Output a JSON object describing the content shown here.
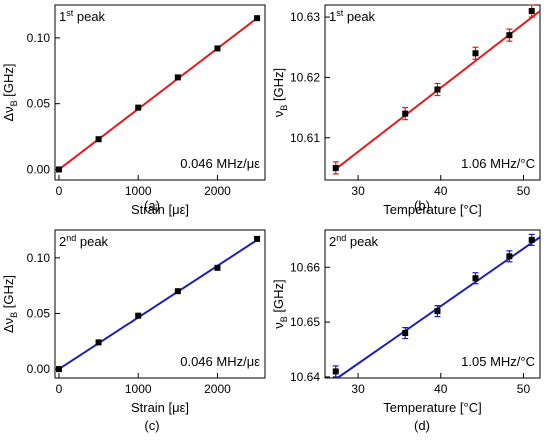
{
  "chart_data": [
    {
      "type": "scatter",
      "panel_label": "(a)",
      "peak_label": {
        "base": "1",
        "sup": "st",
        "rest": " peak"
      },
      "slope_label": "0.046 MHz/με",
      "ylabel": {
        "prefix": "Δν",
        "sub": "B",
        "suffix": " [GHz]"
      },
      "xlabel": {
        "text": "Strain [με]"
      },
      "xlim": [
        -50,
        2600
      ],
      "ylim": [
        -0.008,
        0.125
      ],
      "xticks": [
        0,
        1000,
        2000
      ],
      "xtick_labels": [
        "0",
        "1000",
        "2000"
      ],
      "yticks": [
        0.0,
        0.05,
        0.1
      ],
      "ytick_labels": [
        "0.00",
        "0.05",
        "0.10"
      ],
      "points": {
        "x": [
          0,
          500,
          1000,
          1500,
          2000,
          2500
        ],
        "y": [
          0.0,
          0.023,
          0.047,
          0.07,
          0.092,
          0.115
        ]
      },
      "fit": {
        "x": [
          0,
          2500
        ],
        "y": [
          0.0,
          0.115
        ]
      },
      "grid": false,
      "fit_color": "#e41a1c",
      "errorbar_color": "#e41a1c"
    },
    {
      "type": "scatter",
      "panel_label": "(b)",
      "peak_label": {
        "base": "1",
        "sup": "st",
        "rest": " peak"
      },
      "slope_label": "1.06 MHz/°C",
      "ylabel": {
        "prefix": "ν",
        "sub": "B",
        "suffix": " [GHz]"
      },
      "xlabel": {
        "text": "Temperature [°C]"
      },
      "xlim": [
        26,
        52
      ],
      "ylim": [
        10.603,
        10.632
      ],
      "xticks": [
        30,
        40,
        50
      ],
      "xtick_labels": [
        "30",
        "40",
        "50"
      ],
      "yticks": [
        10.61,
        10.62,
        10.63
      ],
      "ytick_labels": [
        "10.61",
        "10.62",
        "10.63"
      ],
      "points": {
        "x": [
          27.3,
          35.7,
          39.6,
          44.2,
          48.3,
          51.0
        ],
        "y": [
          10.605,
          10.614,
          10.618,
          10.624,
          10.627,
          10.631
        ]
      },
      "errors": [
        0.001,
        0.001,
        0.001,
        0.001,
        0.001,
        0.001
      ],
      "fit": {
        "x": [
          27.0,
          52.0
        ],
        "y": [
          10.6045,
          10.631
        ]
      },
      "grid": false,
      "fit_color": "#e41a1c",
      "errorbar_color": "#e41a1c"
    },
    {
      "type": "scatter",
      "panel_label": "(c)",
      "peak_label": {
        "base": "2",
        "sup": "nd",
        "rest": " peak"
      },
      "slope_label": "0.046 MHz/με",
      "ylabel": {
        "prefix": "Δν",
        "sub": "B",
        "suffix": " [GHz]"
      },
      "xlabel": {
        "text": "Strain [με]"
      },
      "xlim": [
        -50,
        2600
      ],
      "ylim": [
        -0.008,
        0.125
      ],
      "xticks": [
        0,
        1000,
        2000
      ],
      "xtick_labels": [
        "0",
        "1000",
        "2000"
      ],
      "yticks": [
        0.0,
        0.05,
        0.1
      ],
      "ytick_labels": [
        "0.00",
        "0.05",
        "0.10"
      ],
      "points": {
        "x": [
          0,
          500,
          1000,
          1500,
          2000,
          2500
        ],
        "y": [
          0.0,
          0.024,
          0.048,
          0.07,
          0.091,
          0.117
        ]
      },
      "fit": {
        "x": [
          0,
          2500
        ],
        "y": [
          0.0,
          0.116
        ]
      },
      "grid": false,
      "fit_color": "#1f1fb4",
      "errorbar_color": "#1f1fb4"
    },
    {
      "type": "scatter",
      "panel_label": "(d)",
      "peak_label": {
        "base": "2",
        "sup": "nd",
        "rest": " peak"
      },
      "slope_label": "1.05 MHz/°C",
      "ylabel": {
        "prefix": "ν",
        "sub": "B",
        "suffix": " [GHz]"
      },
      "xlabel": {
        "text": "Temperature [°C]"
      },
      "xlim": [
        26,
        52
      ],
      "ylim": [
        10.6398,
        10.6668
      ],
      "xticks": [
        30,
        40,
        50
      ],
      "xtick_labels": [
        "30",
        "40",
        "50"
      ],
      "yticks": [
        10.64,
        10.65,
        10.66
      ],
      "ytick_labels": [
        "10.64",
        "10.65",
        "10.66"
      ],
      "points": {
        "x": [
          27.3,
          35.7,
          39.6,
          44.2,
          48.3,
          51.0
        ],
        "y": [
          10.641,
          10.648,
          10.652,
          10.658,
          10.662,
          10.665
        ]
      },
      "errors": [
        0.001,
        0.001,
        0.001,
        0.001,
        0.001,
        0.001
      ],
      "fit": {
        "x": [
          27.5,
          52.0
        ],
        "y": [
          10.6398,
          10.6655
        ]
      },
      "grid": false,
      "fit_color": "#1f1fb4",
      "errorbar_color": "#1f1fb4"
    }
  ]
}
